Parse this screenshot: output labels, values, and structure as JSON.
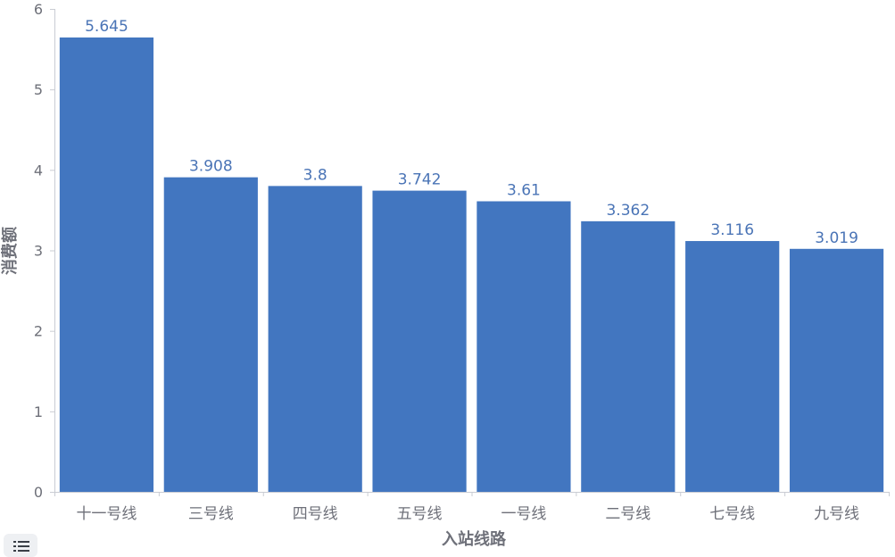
{
  "chart_data": {
    "type": "bar",
    "categories": [
      "十一号线",
      "三号线",
      "四号线",
      "五号线",
      "一号线",
      "二号线",
      "七号线",
      "九号线"
    ],
    "values": [
      5.645,
      3.908,
      3.8,
      3.742,
      3.61,
      3.362,
      3.116,
      3.019
    ],
    "value_labels": [
      "5.645",
      "3.908",
      "3.8",
      "3.742",
      "3.61",
      "3.362",
      "3.116",
      "3.019"
    ],
    "xlabel": "入站线路",
    "ylabel": "消费额",
    "ylim": [
      0,
      6
    ],
    "yticks": [
      0,
      1,
      2,
      3,
      4,
      5,
      6
    ],
    "grid": false,
    "bar_color": "#4276c0",
    "label_color": "#4a74b6",
    "axis_color": "#6e7079"
  },
  "toolbar": {
    "menu_icon": "list-icon"
  }
}
